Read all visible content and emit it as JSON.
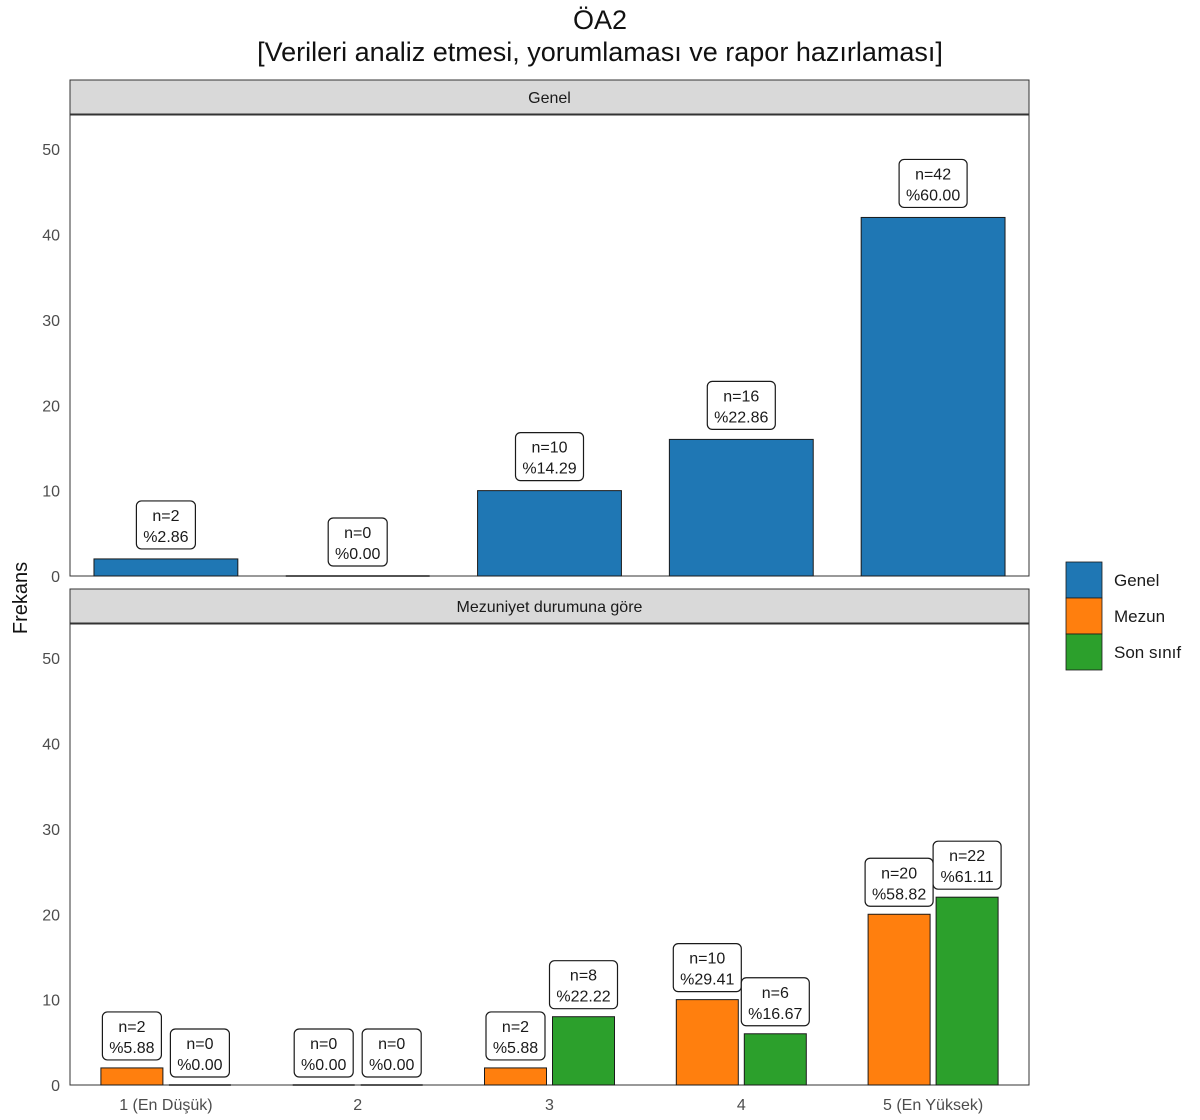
{
  "title_line1": "ÖA2",
  "title_line2": "[Verileri analiz etmesi, yorumlaması ve rapor hazırlaması]",
  "colors": {
    "Genel": "#1f77b4",
    "Mezun": "#ff7f0e",
    "Son sınıf": "#2ca02c"
  },
  "chart_data": [
    {
      "type": "bar",
      "panel": "Genel",
      "categories": [
        "1 (En Düşük)",
        "2",
        "3",
        "4",
        "5 (En Yüksek)"
      ],
      "series": [
        {
          "name": "Genel",
          "values": [
            2,
            0,
            10,
            16,
            42
          ],
          "labels": [
            "n=2\n%2.86",
            "n=0\n%0.00",
            "n=10\n%14.29",
            "n=16\n%22.86",
            "n=42\n%60.00"
          ]
        }
      ],
      "ylabel": "Frekans",
      "ylim": [
        0,
        54
      ],
      "yticks": [
        0,
        10,
        20,
        30,
        40,
        50
      ]
    },
    {
      "type": "bar",
      "panel": "Mezuniyet durumuna göre",
      "categories": [
        "1 (En Düşük)",
        "2",
        "3",
        "4",
        "5 (En Yüksek)"
      ],
      "series": [
        {
          "name": "Mezun",
          "values": [
            2,
            0,
            2,
            10,
            20
          ],
          "labels": [
            "n=2\n%5.88",
            "n=0\n%0.00",
            "n=2\n%5.88",
            "n=10\n%29.41",
            "n=20\n%58.82"
          ]
        },
        {
          "name": "Son sınıf",
          "values": [
            0,
            0,
            8,
            6,
            22
          ],
          "labels": [
            "n=0\n%0.00",
            "n=0\n%0.00",
            "n=8\n%22.22",
            "n=6\n%16.67",
            "n=22\n%61.11"
          ]
        }
      ],
      "ylabel": "Frekans",
      "ylim": [
        0,
        54
      ],
      "yticks": [
        0,
        10,
        20,
        30,
        40,
        50
      ]
    }
  ],
  "legend": {
    "items": [
      "Genel",
      "Mezun",
      "Son sınıf"
    ],
    "position": "right"
  }
}
